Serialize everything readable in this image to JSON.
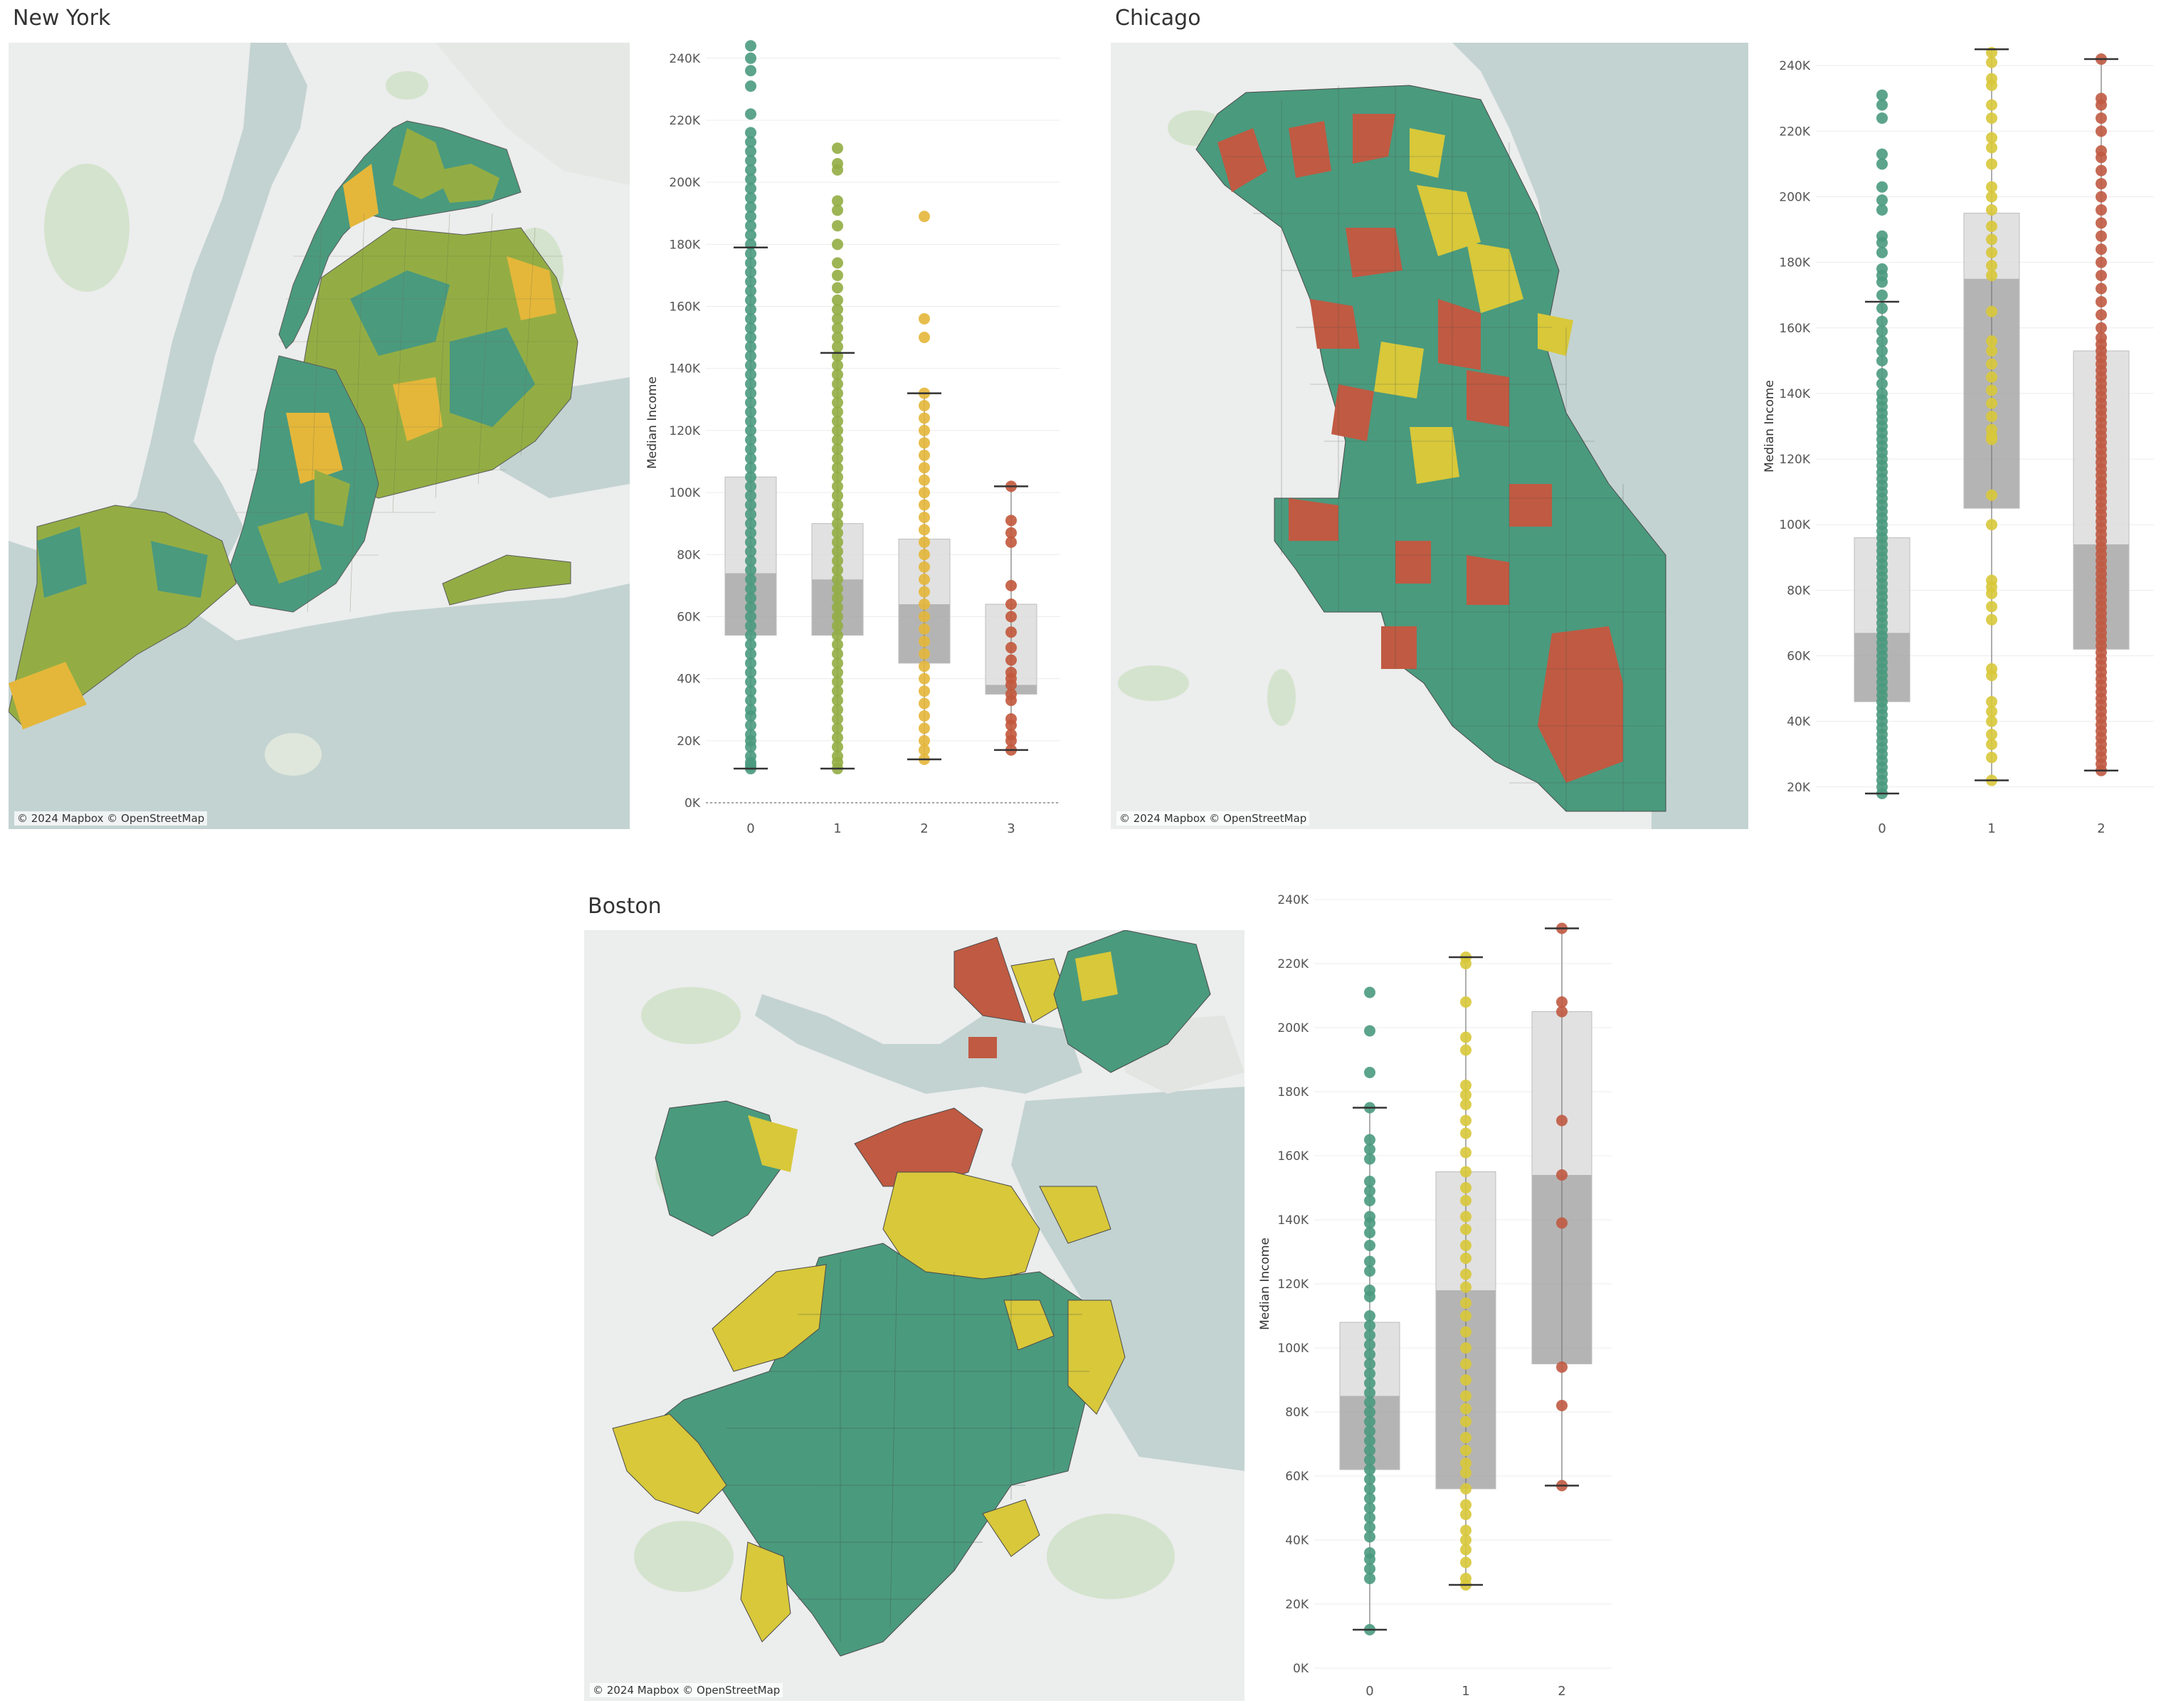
{
  "colors": {
    "cluster0": "#4a9a7e",
    "cluster1_ny": "#93ad44",
    "cluster2_ny": "#e4b73a",
    "cluster3_ny": "#c2583c",
    "yellow": "#d8c83a",
    "red": "#c05a42",
    "water": "#c3d3d2",
    "land": "#eceded",
    "park": "#d4e3cd",
    "box_light": "#dcdcdc",
    "box_dark": "#a7a7a7"
  },
  "maps": [
    {
      "city": "New York",
      "attribution": "© 2024 Mapbox © OpenStreetMap"
    },
    {
      "city": "Chicago",
      "attribution": "© 2024 Mapbox © OpenStreetMap"
    },
    {
      "city": "Boston",
      "attribution": "© 2024 Mapbox © OpenStreetMap"
    }
  ],
  "chart_data": [
    {
      "type": "box",
      "city": "New York",
      "ylabel": "Median Income",
      "ylim": [
        0,
        245000
      ],
      "yticks": [
        "0K",
        "20K",
        "40K",
        "60K",
        "80K",
        "100K",
        "120K",
        "140K",
        "160K",
        "180K",
        "200K",
        "220K",
        "240K"
      ],
      "zero_line": true,
      "categories": [
        "0",
        "1",
        "2",
        "3"
      ],
      "series": [
        {
          "category": "0",
          "color": "#4a9a7e",
          "whisker_low": 11000,
          "q1": 54000,
          "median": 74000,
          "q3": 105000,
          "whisker_high": 179000,
          "points": [
            11000,
            12000,
            13000,
            15000,
            18000,
            20000,
            22000,
            25000,
            28000,
            30000,
            33000,
            36000,
            39000,
            42000,
            45000,
            48000,
            51000,
            54000,
            57000,
            60000,
            63000,
            66000,
            69000,
            72000,
            75000,
            78000,
            81000,
            84000,
            87000,
            90000,
            93000,
            96000,
            99000,
            102000,
            105000,
            108000,
            111000,
            114000,
            117000,
            120000,
            123000,
            126000,
            129000,
            132000,
            135000,
            138000,
            141000,
            144000,
            147000,
            150000,
            153000,
            156000,
            159000,
            162000,
            165000,
            168000,
            171000,
            174000,
            177000,
            180000,
            183000,
            186000,
            189000,
            192000,
            195000,
            198000,
            201000,
            204000,
            207000,
            210000,
            213000,
            216000,
            222000,
            231000,
            236000,
            240000,
            244000
          ]
        },
        {
          "category": "1",
          "color": "#93ad44",
          "whisker_low": 11000,
          "q1": 54000,
          "median": 72000,
          "q3": 90000,
          "whisker_high": 145000,
          "points": [
            11000,
            13000,
            15000,
            18000,
            21000,
            24000,
            27000,
            30000,
            33000,
            36000,
            39000,
            42000,
            45000,
            48000,
            51000,
            54000,
            57000,
            60000,
            63000,
            66000,
            69000,
            72000,
            75000,
            78000,
            81000,
            84000,
            87000,
            90000,
            93000,
            96000,
            99000,
            102000,
            105000,
            108000,
            111000,
            114000,
            117000,
            120000,
            123000,
            126000,
            129000,
            132000,
            135000,
            138000,
            141000,
            144000,
            147000,
            150000,
            153000,
            156000,
            159000,
            162000,
            166000,
            170000,
            174000,
            180000,
            186000,
            191000,
            194000,
            204000,
            206000,
            211000
          ]
        },
        {
          "category": "2",
          "color": "#e4b73a",
          "whisker_low": 14000,
          "q1": 45000,
          "median": 64000,
          "q3": 85000,
          "whisker_high": 132000,
          "points": [
            14000,
            17000,
            20000,
            24000,
            28000,
            32000,
            36000,
            40000,
            44000,
            48000,
            52000,
            56000,
            60000,
            64000,
            68000,
            72000,
            76000,
            80000,
            84000,
            88000,
            92000,
            96000,
            100000,
            104000,
            108000,
            112000,
            116000,
            120000,
            124000,
            128000,
            132000,
            150000,
            156000,
            189000
          ]
        },
        {
          "category": "3",
          "color": "#c2583c",
          "whisker_low": 17000,
          "q1": 35000,
          "median": 38000,
          "q3": 64000,
          "whisker_high": 102000,
          "points": [
            17000,
            20000,
            22000,
            25000,
            27000,
            33000,
            35000,
            38000,
            40000,
            42000,
            46000,
            50000,
            55000,
            60000,
            64000,
            70000,
            84000,
            87000,
            91000,
            102000
          ]
        }
      ]
    },
    {
      "type": "box",
      "city": "Chicago",
      "ylabel": "Median Income",
      "ylim": [
        13000,
        247000
      ],
      "yticks": [
        "20K",
        "40K",
        "60K",
        "80K",
        "100K",
        "120K",
        "140K",
        "160K",
        "180K",
        "200K",
        "220K",
        "240K"
      ],
      "zero_line": false,
      "categories": [
        "0",
        "1",
        "2"
      ],
      "series": [
        {
          "category": "0",
          "color": "#4a9a7e",
          "whisker_low": 18000,
          "q1": 46000,
          "median": 67000,
          "q3": 96000,
          "whisker_high": 168000,
          "points": [
            18000,
            20000,
            22000,
            24000,
            26000,
            28000,
            30000,
            32000,
            34000,
            36000,
            38000,
            40000,
            42000,
            44000,
            46000,
            48000,
            50000,
            52000,
            54000,
            56000,
            58000,
            60000,
            62000,
            64000,
            66000,
            68000,
            70000,
            72000,
            74000,
            76000,
            78000,
            80000,
            82000,
            84000,
            86000,
            88000,
            90000,
            92000,
            94000,
            96000,
            98000,
            100000,
            102000,
            104000,
            106000,
            108000,
            110000,
            112000,
            114000,
            116000,
            118000,
            120000,
            122000,
            124000,
            126000,
            128000,
            130000,
            132000,
            134000,
            136000,
            138000,
            140000,
            143000,
            146000,
            150000,
            153000,
            156000,
            159000,
            162000,
            166000,
            170000,
            174000,
            176000,
            178000,
            183000,
            186000,
            188000,
            196000,
            199000,
            203000,
            210000,
            213000,
            224000,
            228000,
            231000
          ]
        },
        {
          "category": "1",
          "color": "#d8c83a",
          "whisker_low": 22000,
          "q1": 105000,
          "median": 175000,
          "q3": 195000,
          "whisker_high": 245000,
          "points": [
            22000,
            29000,
            33000,
            36000,
            40000,
            43000,
            46000,
            54000,
            56000,
            71000,
            75000,
            79000,
            81000,
            83000,
            100000,
            109000,
            126000,
            127000,
            129000,
            133000,
            137000,
            141000,
            145000,
            149000,
            153000,
            156000,
            165000,
            176000,
            179000,
            183000,
            187000,
            191000,
            196000,
            200000,
            203000,
            210000,
            215000,
            218000,
            224000,
            228000,
            234000,
            236000,
            241000,
            244000
          ]
        },
        {
          "category": "2",
          "color": "#c05a42",
          "whisker_low": 25000,
          "q1": 62000,
          "median": 94000,
          "q3": 153000,
          "whisker_high": 242000,
          "points": [
            25000,
            27000,
            29000,
            31000,
            33000,
            35000,
            37000,
            39000,
            41000,
            43000,
            45000,
            47000,
            49000,
            51000,
            53000,
            55000,
            57000,
            59000,
            61000,
            63000,
            65000,
            67000,
            69000,
            71000,
            73000,
            75000,
            77000,
            79000,
            81000,
            83000,
            85000,
            87000,
            89000,
            91000,
            93000,
            95000,
            97000,
            99000,
            101000,
            103000,
            105000,
            107000,
            109000,
            111000,
            113000,
            115000,
            117000,
            119000,
            121000,
            123000,
            125000,
            127000,
            129000,
            131000,
            133000,
            135000,
            137000,
            139000,
            141000,
            143000,
            145000,
            147000,
            149000,
            151000,
            153000,
            155000,
            157000,
            160000,
            164000,
            168000,
            172000,
            176000,
            180000,
            184000,
            188000,
            192000,
            196000,
            200000,
            204000,
            208000,
            212000,
            214000,
            220000,
            224000,
            228000,
            230000,
            242000
          ]
        }
      ]
    },
    {
      "type": "box",
      "city": "Boston",
      "ylabel": "Median Income",
      "ylim": [
        0,
        240000
      ],
      "yticks": [
        "0K",
        "20K",
        "40K",
        "60K",
        "80K",
        "100K",
        "120K",
        "140K",
        "160K",
        "180K",
        "200K",
        "220K",
        "240K"
      ],
      "zero_line": false,
      "categories": [
        "0",
        "1",
        "2"
      ],
      "series": [
        {
          "category": "0",
          "color": "#4a9a7e",
          "whisker_low": 12000,
          "q1": 62000,
          "median": 85000,
          "q3": 108000,
          "whisker_high": 175000,
          "points": [
            12000,
            28000,
            31000,
            34000,
            36000,
            41000,
            44000,
            47000,
            50000,
            53000,
            56000,
            59000,
            62000,
            65000,
            68000,
            71000,
            74000,
            77000,
            80000,
            83000,
            86000,
            89000,
            92000,
            95000,
            98000,
            101000,
            104000,
            107000,
            110000,
            116000,
            118000,
            124000,
            127000,
            132000,
            136000,
            139000,
            141000,
            146000,
            149000,
            152000,
            159000,
            162000,
            165000,
            175000,
            186000,
            199000,
            211000
          ]
        },
        {
          "category": "1",
          "color": "#d8c83a",
          "whisker_low": 26000,
          "q1": 56000,
          "median": 118000,
          "q3": 155000,
          "whisker_high": 222000,
          "points": [
            26000,
            28000,
            33000,
            37000,
            40000,
            43000,
            48000,
            51000,
            56000,
            61000,
            64000,
            68000,
            72000,
            77000,
            81000,
            85000,
            90000,
            95000,
            100000,
            105000,
            110000,
            114000,
            119000,
            123000,
            128000,
            132000,
            137000,
            141000,
            146000,
            150000,
            155000,
            161000,
            167000,
            171000,
            176000,
            179000,
            182000,
            193000,
            197000,
            208000,
            220000,
            222000
          ]
        },
        {
          "category": "2",
          "color": "#c05a42",
          "whisker_low": 57000,
          "q1": 95000,
          "median": 154000,
          "q3": 205000,
          "whisker_high": 231000,
          "points": [
            57000,
            82000,
            94000,
            139000,
            154000,
            171000,
            205000,
            208000,
            231000
          ]
        }
      ]
    }
  ]
}
